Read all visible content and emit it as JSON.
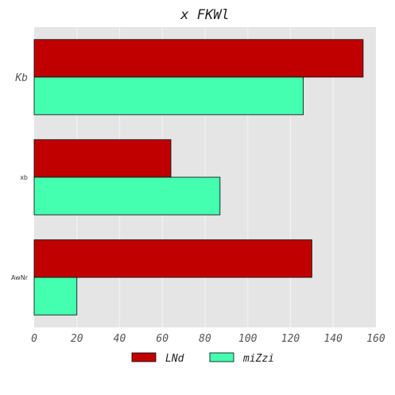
{
  "chart_data": {
    "type": "bar",
    "orientation": "horizontal",
    "title": "x FKWl",
    "xlabel": "",
    "ylabel": "",
    "categories": [
      "Kb",
      "xb",
      "AwNr"
    ],
    "series": [
      {
        "name": "LNd",
        "values": [
          154,
          64,
          130
        ],
        "color": "#c00000"
      },
      {
        "name": "miZzi",
        "values": [
          126,
          87,
          20
        ],
        "color": "#44ffb0"
      }
    ],
    "xlim": [
      0,
      160
    ],
    "xticks": [
      0,
      20,
      40,
      60,
      80,
      100,
      120,
      140,
      160
    ],
    "grid": true,
    "legend_position": "bottom",
    "background": "#e5e5e5"
  }
}
